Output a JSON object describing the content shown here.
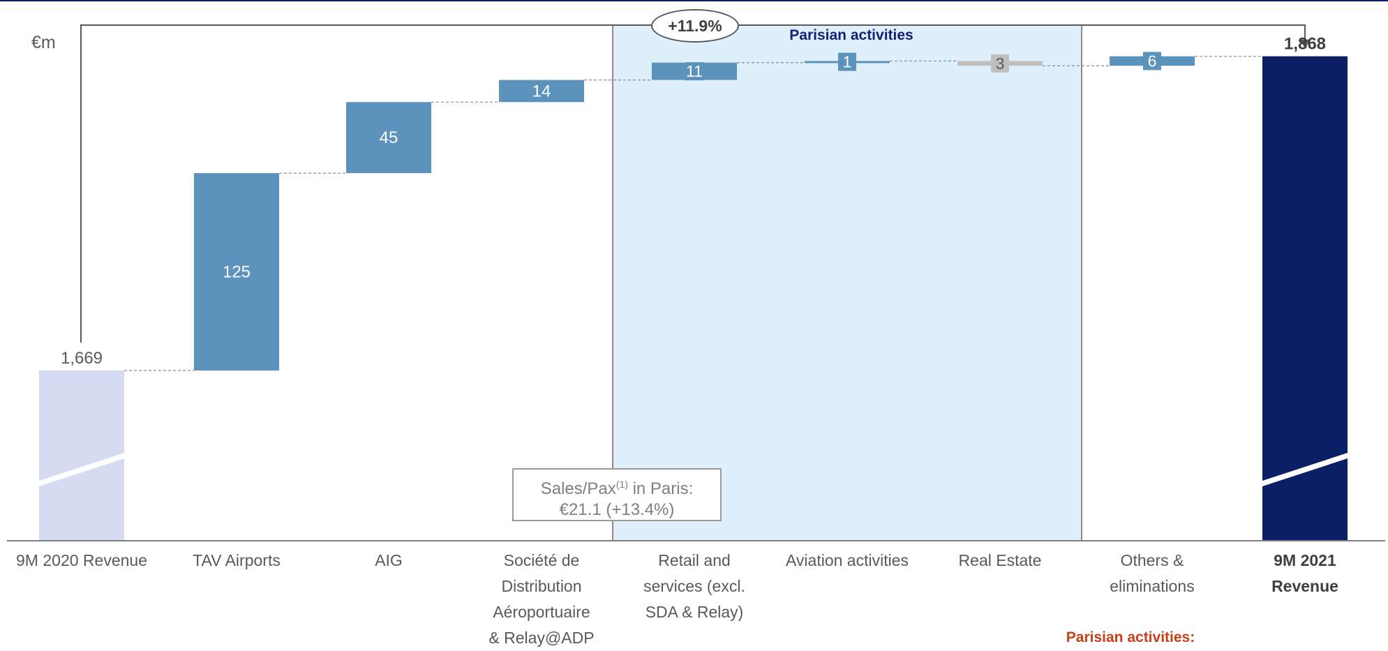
{
  "chart_data": {
    "type": "waterfall",
    "unit": "€m",
    "ylim": [
      1500,
      1900
    ],
    "start": {
      "label": "9M 2020 Revenue",
      "value": 1669,
      "value_label": "1,669",
      "color": "#d5dbf0"
    },
    "steps": [
      {
        "label_lines": [
          "TAV Airports"
        ],
        "delta": 125,
        "value_label": "125",
        "color": "#5b93bd",
        "group": ""
      },
      {
        "label_lines": [
          "AIG"
        ],
        "delta": 45,
        "value_label": "45",
        "color": "#5b93bd",
        "group": ""
      },
      {
        "label_lines": [
          "Société de",
          "Distribution",
          "Aéroportuaire",
          "& Relay@ADP"
        ],
        "delta": 14,
        "value_label": "14",
        "color": "#5b93bd",
        "group": ""
      },
      {
        "label_lines": [
          "Retail and",
          "services (excl.",
          "SDA & Relay)"
        ],
        "delta": 11,
        "value_label": "11",
        "color": "#5b93bd",
        "group": "parisian"
      },
      {
        "label_lines": [
          "Aviation activities"
        ],
        "delta": 1,
        "value_label": "1",
        "color": "#5b93bd",
        "group": "parisian"
      },
      {
        "label_lines": [
          "Real Estate"
        ],
        "delta": -3,
        "value_label": "3",
        "color": "#bfbfbf",
        "group": "parisian"
      },
      {
        "label_lines": [
          "Others &",
          "eliminations"
        ],
        "delta": 6,
        "value_label": "6",
        "color": "#5b93bd",
        "group": ""
      }
    ],
    "end": {
      "label": "9M 2021 Revenue",
      "value": 1868,
      "value_label": "1,868",
      "color": "#0a1f66"
    },
    "growth_label": "+11.9%",
    "paris_box_title": "Parisian activities",
    "paris_box_color": "#dff0fc",
    "sales_note_lines": [
      "Sales/Pax",
      "(1)",
      " in Paris:",
      "€21.1 (+13.4%)"
    ],
    "footer_note": "Parisian activities:",
    "footer_note_color": "#c8401a"
  }
}
